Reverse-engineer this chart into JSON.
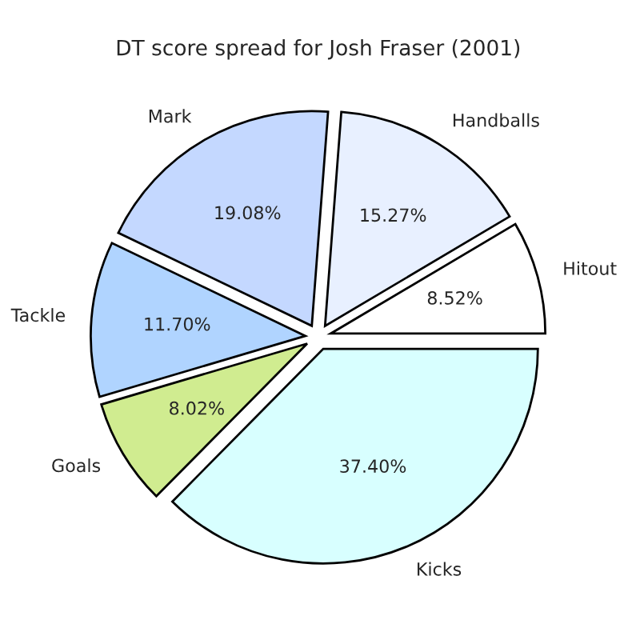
{
  "chart_data": {
    "type": "pie",
    "title": "DT score spread for Josh Fraser (2001)",
    "categories": [
      "Hitout",
      "Handballs",
      "Mark",
      "Tackle",
      "Goals",
      "Kicks"
    ],
    "values": [
      8.52,
      15.27,
      19.08,
      11.7,
      8.02,
      37.4
    ],
    "colors": [
      "#ffffff",
      "#e8f0ff",
      "#c4d8ff",
      "#b0d4ff",
      "#d0ec90",
      "#d8ffff"
    ],
    "value_labels": [
      "8.52%",
      "15.27%",
      "19.08%",
      "11.70%",
      "8.02%",
      "37.40%"
    ]
  }
}
